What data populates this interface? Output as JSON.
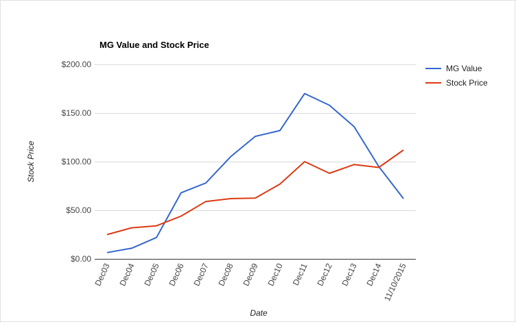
{
  "chart_data": {
    "type": "line",
    "title": "MG Value and Stock Price",
    "xlabel": "Date",
    "ylabel": "Stock Price",
    "categories": [
      "Dec03",
      "Dec04",
      "Dec05",
      "Dec06",
      "Dec07",
      "Dec08",
      "Dec09",
      "Dec10",
      "Dec11",
      "Dec12",
      "Dec13",
      "Dec14",
      "11/10/2015"
    ],
    "ylim": [
      0,
      200
    ],
    "yticks": [
      0,
      50,
      100,
      150,
      200
    ],
    "ytick_labels": [
      "$0.00",
      "$50.00",
      "$100.00",
      "$150.00",
      "$200.00"
    ],
    "grid": true,
    "legend_position": "right",
    "series": [
      {
        "name": "MG Value",
        "color": "#3366cc",
        "values": [
          6.5,
          11,
          22,
          68,
          78,
          105,
          126,
          132,
          170,
          158,
          136,
          95,
          62
        ]
      },
      {
        "name": "Stock Price",
        "color": "#dc3912",
        "values": [
          25,
          32,
          34,
          44,
          59,
          62,
          62.5,
          77,
          100,
          88,
          97,
          94,
          112
        ]
      }
    ]
  }
}
